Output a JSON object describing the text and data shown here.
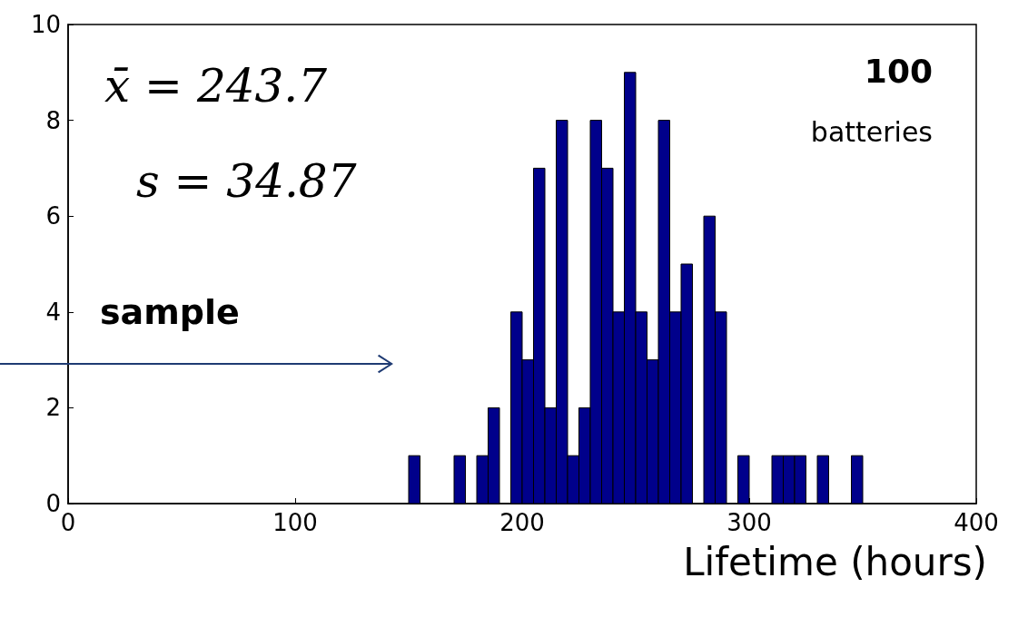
{
  "chart_data": {
    "type": "histogram",
    "xlabel": "Lifetime (hours)",
    "bins": [
      150,
      155,
      160,
      165,
      170,
      175,
      180,
      185,
      190,
      195,
      200,
      205,
      210,
      215,
      220,
      225,
      230,
      235,
      240,
      245,
      250,
      255,
      260,
      265,
      270,
      275,
      280,
      285,
      290,
      295,
      300,
      305,
      310,
      315,
      320,
      325,
      330,
      335,
      340,
      345,
      350
    ],
    "values": [
      1,
      0,
      0,
      0,
      1,
      0,
      1,
      2,
      0,
      4,
      3,
      7,
      2,
      8,
      1,
      2,
      8,
      7,
      4,
      9,
      4,
      3,
      8,
      4,
      5,
      0,
      6,
      4,
      0,
      1,
      0,
      0,
      1,
      1,
      1,
      0,
      1,
      0,
      0,
      1
    ],
    "color": "#00008b",
    "xlim": [
      0,
      400
    ],
    "xticks": [
      0,
      100,
      200,
      300,
      400
    ],
    "ylim": [
      0,
      10
    ],
    "yticks": [
      0,
      2,
      4,
      6,
      8,
      10
    ],
    "grid": false,
    "annotations": [
      "x̄ = 243.7",
      "s = 34.87",
      "100",
      "batteries",
      "sample"
    ]
  }
}
